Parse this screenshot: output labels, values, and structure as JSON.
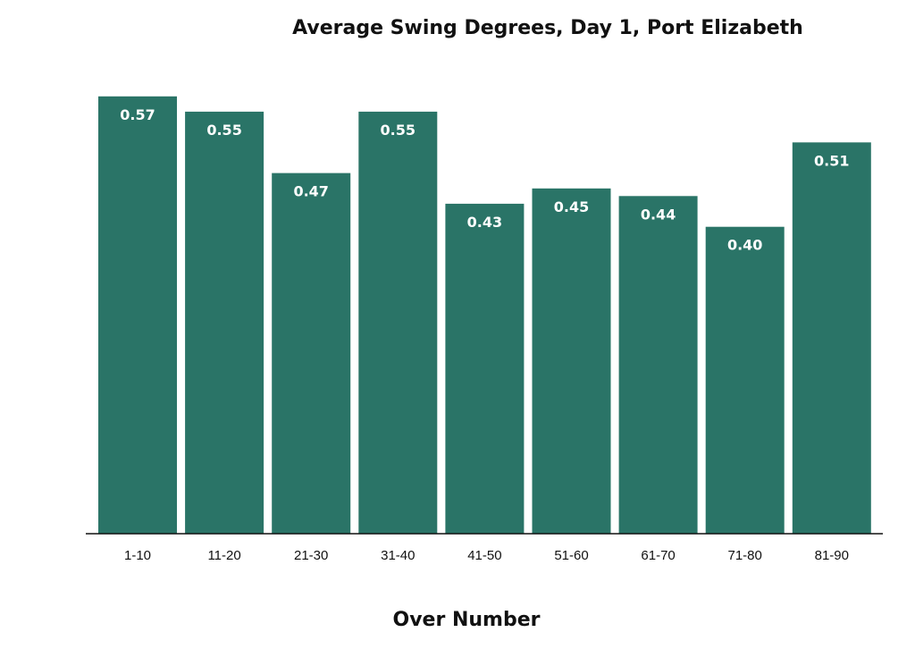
{
  "chart_data": {
    "type": "bar",
    "title": "Average Swing Degrees, Day 1, Port Elizabeth",
    "xlabel": "Over Number",
    "ylabel": "",
    "categories": [
      "1-10",
      "11-20",
      "21-30",
      "31-40",
      "41-50",
      "51-60",
      "61-70",
      "71-80",
      "81-90"
    ],
    "values": [
      0.57,
      0.55,
      0.47,
      0.55,
      0.43,
      0.45,
      0.44,
      0.4,
      0.51
    ],
    "value_labels": [
      "0.57",
      "0.55",
      "0.47",
      "0.55",
      "0.43",
      "0.45",
      "0.44",
      "0.40",
      "0.51"
    ],
    "ylim": [
      0,
      0.6
    ],
    "grid": false,
    "legend": "none",
    "bar_color": "#2a7467",
    "label_color": "#ffffff"
  }
}
